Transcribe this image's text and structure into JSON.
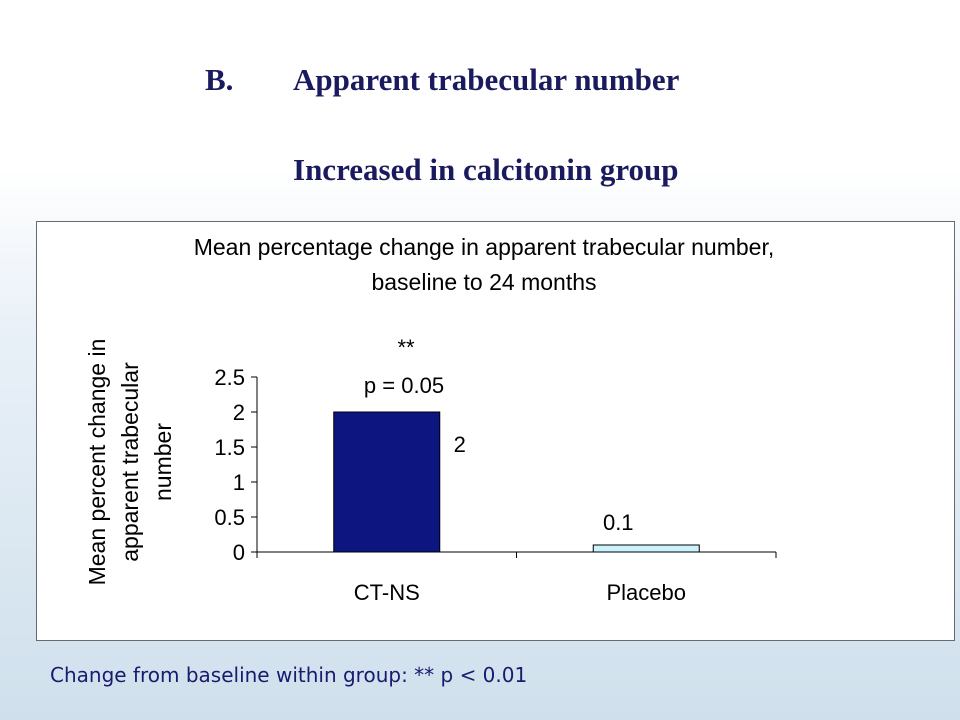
{
  "slide": {
    "section_letter": "B.",
    "title": "Apparent trabecular number",
    "subtitle": "Increased in calcitonin group"
  },
  "colors": {
    "title_text": "#1a1a5e",
    "bar_ctns": "#0c1580",
    "bar_placebo": "#ccf2fc"
  },
  "chart_data": {
    "type": "bar",
    "title_line1": "Mean percentage change in apparent trabecular number,",
    "title_line2": "baseline to 24 months",
    "ylabel_line1": "Mean percent change in",
    "ylabel_line2": "apparent trabecular",
    "ylabel_line3": "number",
    "xlabel": "",
    "categories": [
      "CT-NS",
      "Placebo"
    ],
    "values": [
      2,
      0.1
    ],
    "data_labels": [
      "2",
      "0.1"
    ],
    "ylim": [
      0,
      2.5
    ],
    "yticks": [
      0,
      0.5,
      1,
      1.5,
      2,
      2.5
    ],
    "ytick_labels": [
      "0",
      "0.5",
      "1",
      "1.5",
      "2",
      "2.5"
    ],
    "grid": false,
    "legend": "none",
    "annotations": {
      "significance": "**",
      "p_value": "p = 0.05"
    }
  },
  "footnote": "Change from baseline within group: ** p < 0.01"
}
